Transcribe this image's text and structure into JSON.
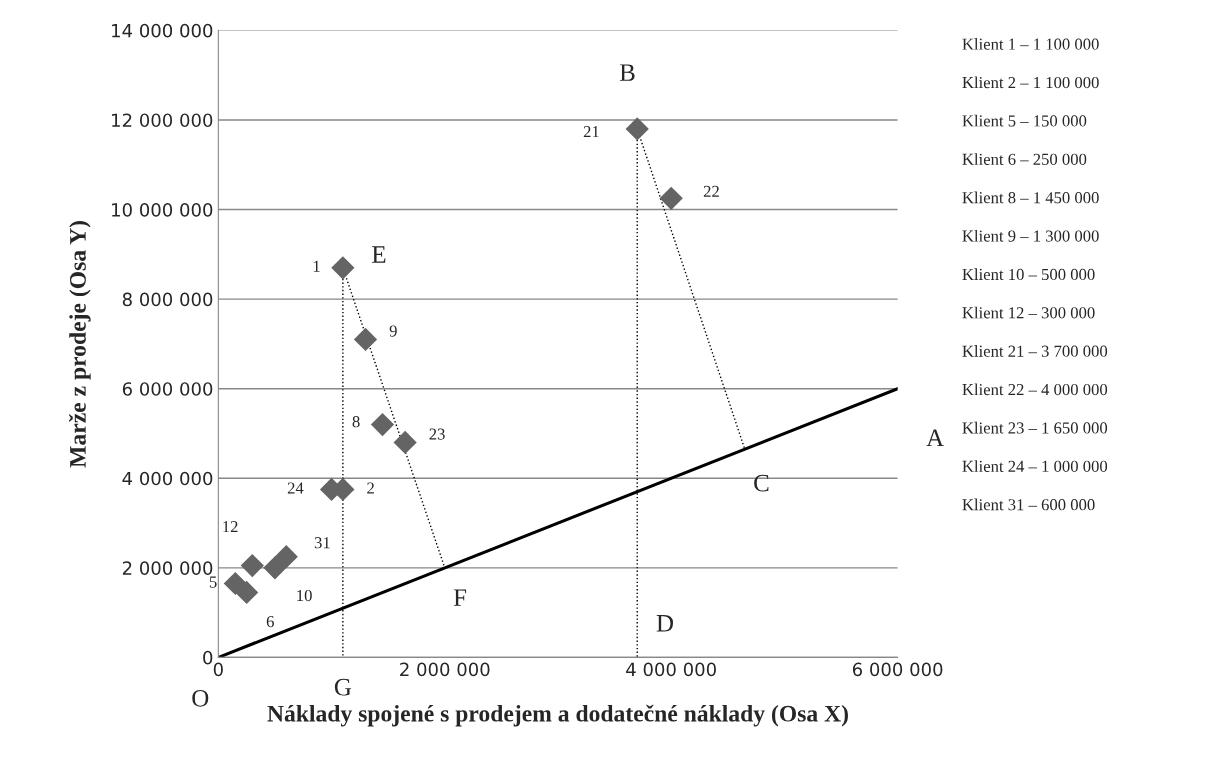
{
  "chart_data": {
    "type": "scatter",
    "xlabel": "Náklady spojené s prodejem a dodatečné náklady (Osa X)",
    "ylabel": "Marže z prodeje (Osa Y)",
    "xlim": [
      0,
      6000000
    ],
    "ylim": [
      0,
      14000000
    ],
    "xticks": [
      0,
      {
        "value": 2000000,
        "label": "2 000 000"
      },
      {
        "value": 4000000,
        "label": "4 000 000"
      },
      {
        "value": 6000000,
        "label": "6 000 000"
      }
    ],
    "yticks": [
      0,
      {
        "value": 2000000,
        "label": "2 000 000"
      },
      {
        "value": 4000000,
        "label": "4 000 000"
      },
      {
        "value": 6000000,
        "label": "6 000 000"
      },
      {
        "value": 8000000,
        "label": "8 000 000"
      },
      {
        "value": 10000000,
        "label": "10 000 000"
      },
      {
        "value": 12000000,
        "label": "12 000 000"
      },
      {
        "value": 14000000,
        "label": "14 000 000"
      }
    ],
    "grid": "y",
    "legend": false,
    "series": [
      {
        "color": "#646464",
        "marker": "diamond",
        "x": [
          1100000,
          1100000,
          150000,
          250000,
          1450000,
          1300000,
          500000,
          300000,
          3700000,
          4000000,
          1650000,
          1000000,
          600000
        ],
        "values": [
          8700000,
          3750000,
          1650000,
          1450000,
          5200000,
          7100000,
          2000000,
          2050000,
          11800000,
          10250000,
          4800000,
          3750000,
          2250000
        ]
      },
      {
        "type": "line",
        "color": "#000000",
        "line_style": "solid",
        "x": [
          0,
          6000000
        ],
        "values": [
          0,
          6000000
        ]
      },
      {
        "type": "line",
        "color": "#000000",
        "line_style": "dotted",
        "x": [
          1100000,
          2000000
        ],
        "values": [
          8700000,
          2000000
        ]
      },
      {
        "type": "line",
        "color": "#000000",
        "line_style": "dotted",
        "x": [
          3700000,
          4650000
        ],
        "values": [
          11800000,
          4650000
        ]
      },
      {
        "type": "line",
        "color": "#000000",
        "line_style": "dotted",
        "x": [
          3700000,
          3700000
        ],
        "values": [
          11800000,
          0
        ]
      },
      {
        "type": "line",
        "color": "#000000",
        "line_style": "dotted",
        "x": [
          1100000,
          1100000
        ],
        "values": [
          8700000,
          0
        ]
      }
    ],
    "annotations": [
      {
        "text": "B",
        "x": 3700000,
        "y": 11800000
      },
      {
        "text": "21",
        "x": 3700000,
        "y": 11800000
      },
      {
        "text": "22",
        "x": 4000000,
        "y": 10250000
      },
      {
        "text": "E",
        "x": 1100000,
        "y": 8700000
      },
      {
        "text": "1",
        "x": 1100000,
        "y": 8700000
      },
      {
        "text": "9",
        "x": 1300000,
        "y": 7100000
      },
      {
        "text": "8",
        "x": 1450000,
        "y": 5200000
      },
      {
        "text": "23",
        "x": 1650000,
        "y": 4800000
      },
      {
        "text": "24",
        "x": 1000000,
        "y": 3750000
      },
      {
        "text": "2",
        "x": 1100000,
        "y": 3750000
      },
      {
        "text": "12",
        "x": 300000,
        "y": 2050000
      },
      {
        "text": "31",
        "x": 600000,
        "y": 2250000
      },
      {
        "text": "10",
        "x": 500000,
        "y": 2000000
      },
      {
        "text": "5",
        "x": 150000,
        "y": 1650000
      },
      {
        "text": "6",
        "x": 250000,
        "y": 1450000
      },
      {
        "text": "A",
        "x": 6000000,
        "y": 6000000
      },
      {
        "text": "C",
        "x": 4650000,
        "y": 4650000
      },
      {
        "text": "F",
        "x": 2000000,
        "y": 2000000
      },
      {
        "text": "D",
        "x": 3700000,
        "y": 0
      },
      {
        "text": "G",
        "x": 1100000,
        "y": 0
      },
      {
        "text": "O",
        "x": 0,
        "y": 0
      },
      "Klient 1 – 1 100 000",
      "Klient 2 – 1 100 000",
      "Klient 5 – 150 000",
      "Klient 6 – 250 000",
      "Klient 8 – 1 450 000",
      "Klient 9 – 1 300 000",
      "Klient 10 – 500 000",
      "Klient 12 – 300 000",
      "Klient 21 – 3 700 000",
      "Klient 22 – 4 000 000",
      "Klient 23 – 1 650 000",
      "Klient 24 – 1 000 000",
      "Klient 31 – 600 000"
    ]
  }
}
